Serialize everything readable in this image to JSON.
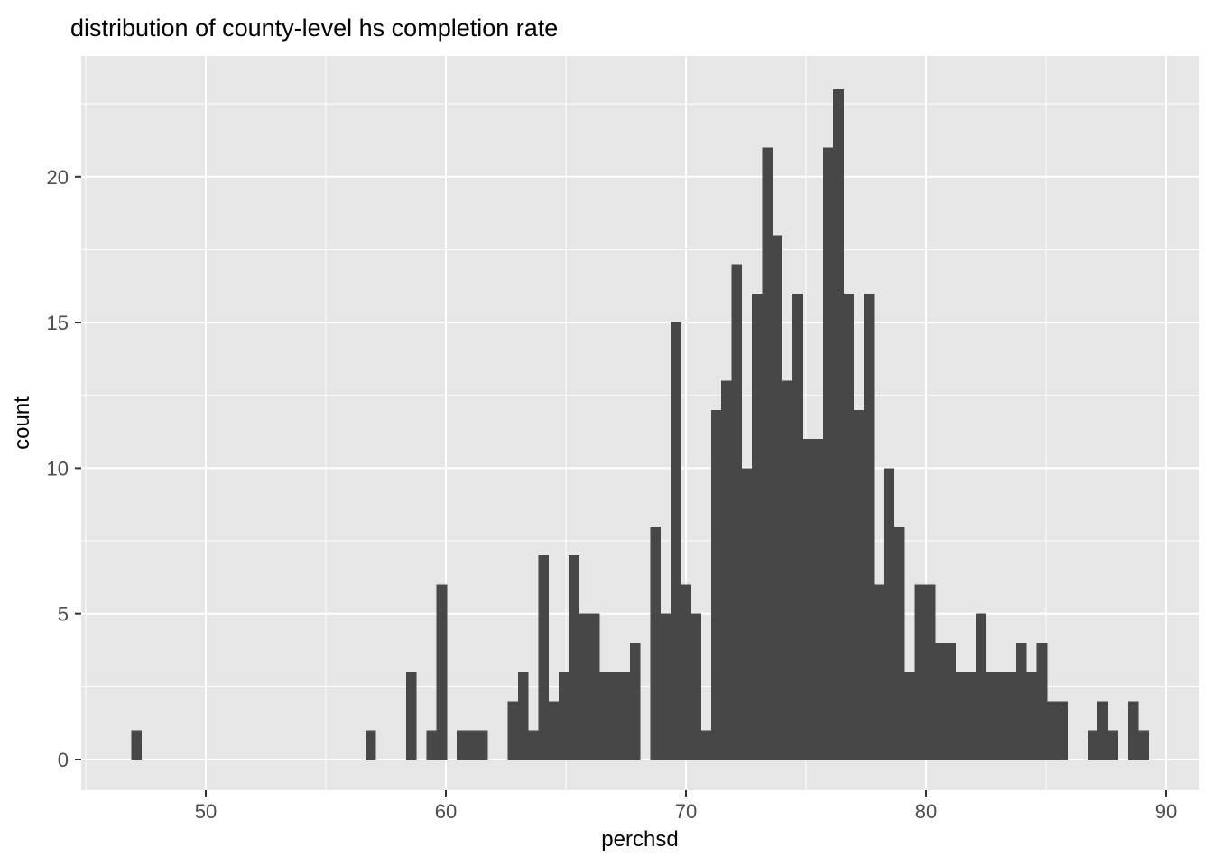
{
  "title": "distribution of county-level hs completion rate",
  "chart_data": {
    "type": "bar",
    "subtype": "histogram",
    "title": "distribution of county-level hs completion rate",
    "xlabel": "perchsd",
    "ylabel": "count",
    "bin_start": 46.9,
    "bin_width": 0.4237,
    "counts": [
      1,
      0,
      0,
      0,
      0,
      0,
      0,
      0,
      0,
      0,
      0,
      0,
      0,
      0,
      0,
      0,
      0,
      0,
      0,
      0,
      0,
      0,
      0,
      1,
      0,
      0,
      0,
      3,
      0,
      1,
      6,
      0,
      1,
      1,
      1,
      0,
      0,
      2,
      3,
      1,
      7,
      2,
      3,
      7,
      5,
      5,
      3,
      3,
      3,
      4,
      0,
      8,
      5,
      15,
      6,
      5,
      1,
      12,
      13,
      17,
      10,
      16,
      21,
      18,
      13,
      16,
      11,
      11,
      21,
      23,
      16,
      12,
      16,
      6,
      10,
      8,
      3,
      6,
      6,
      4,
      4,
      3,
      3,
      5,
      3,
      3,
      3,
      4,
      3,
      4,
      2,
      2,
      0,
      0,
      1,
      2,
      1,
      0,
      2,
      1
    ],
    "x_ticks": [
      50,
      60,
      70,
      80,
      90
    ],
    "y_ticks": [
      0,
      5,
      10,
      15,
      20
    ],
    "x_minor_ticks": [
      45,
      55,
      65,
      75,
      85
    ],
    "y_minor_ticks": [
      2.5,
      7.5,
      12.5,
      17.5,
      22.5
    ],
    "xlim": [
      44.8,
      91.4
    ],
    "ylim": [
      -1.05,
      24.15
    ],
    "grid": "on",
    "legend": "none"
  },
  "style": {
    "panel_bg": "#E6E6E6",
    "bar_fill": "#474747",
    "grid_major_color": "#FFFFFF",
    "grid_minor_color": "#FFFFFF",
    "tick_mark_color": "#333333",
    "axis_text_color": "#4D4D4D",
    "title_color": "#000000",
    "axis_title_color": "#000000",
    "outer_bg": "#FFFFFF"
  }
}
